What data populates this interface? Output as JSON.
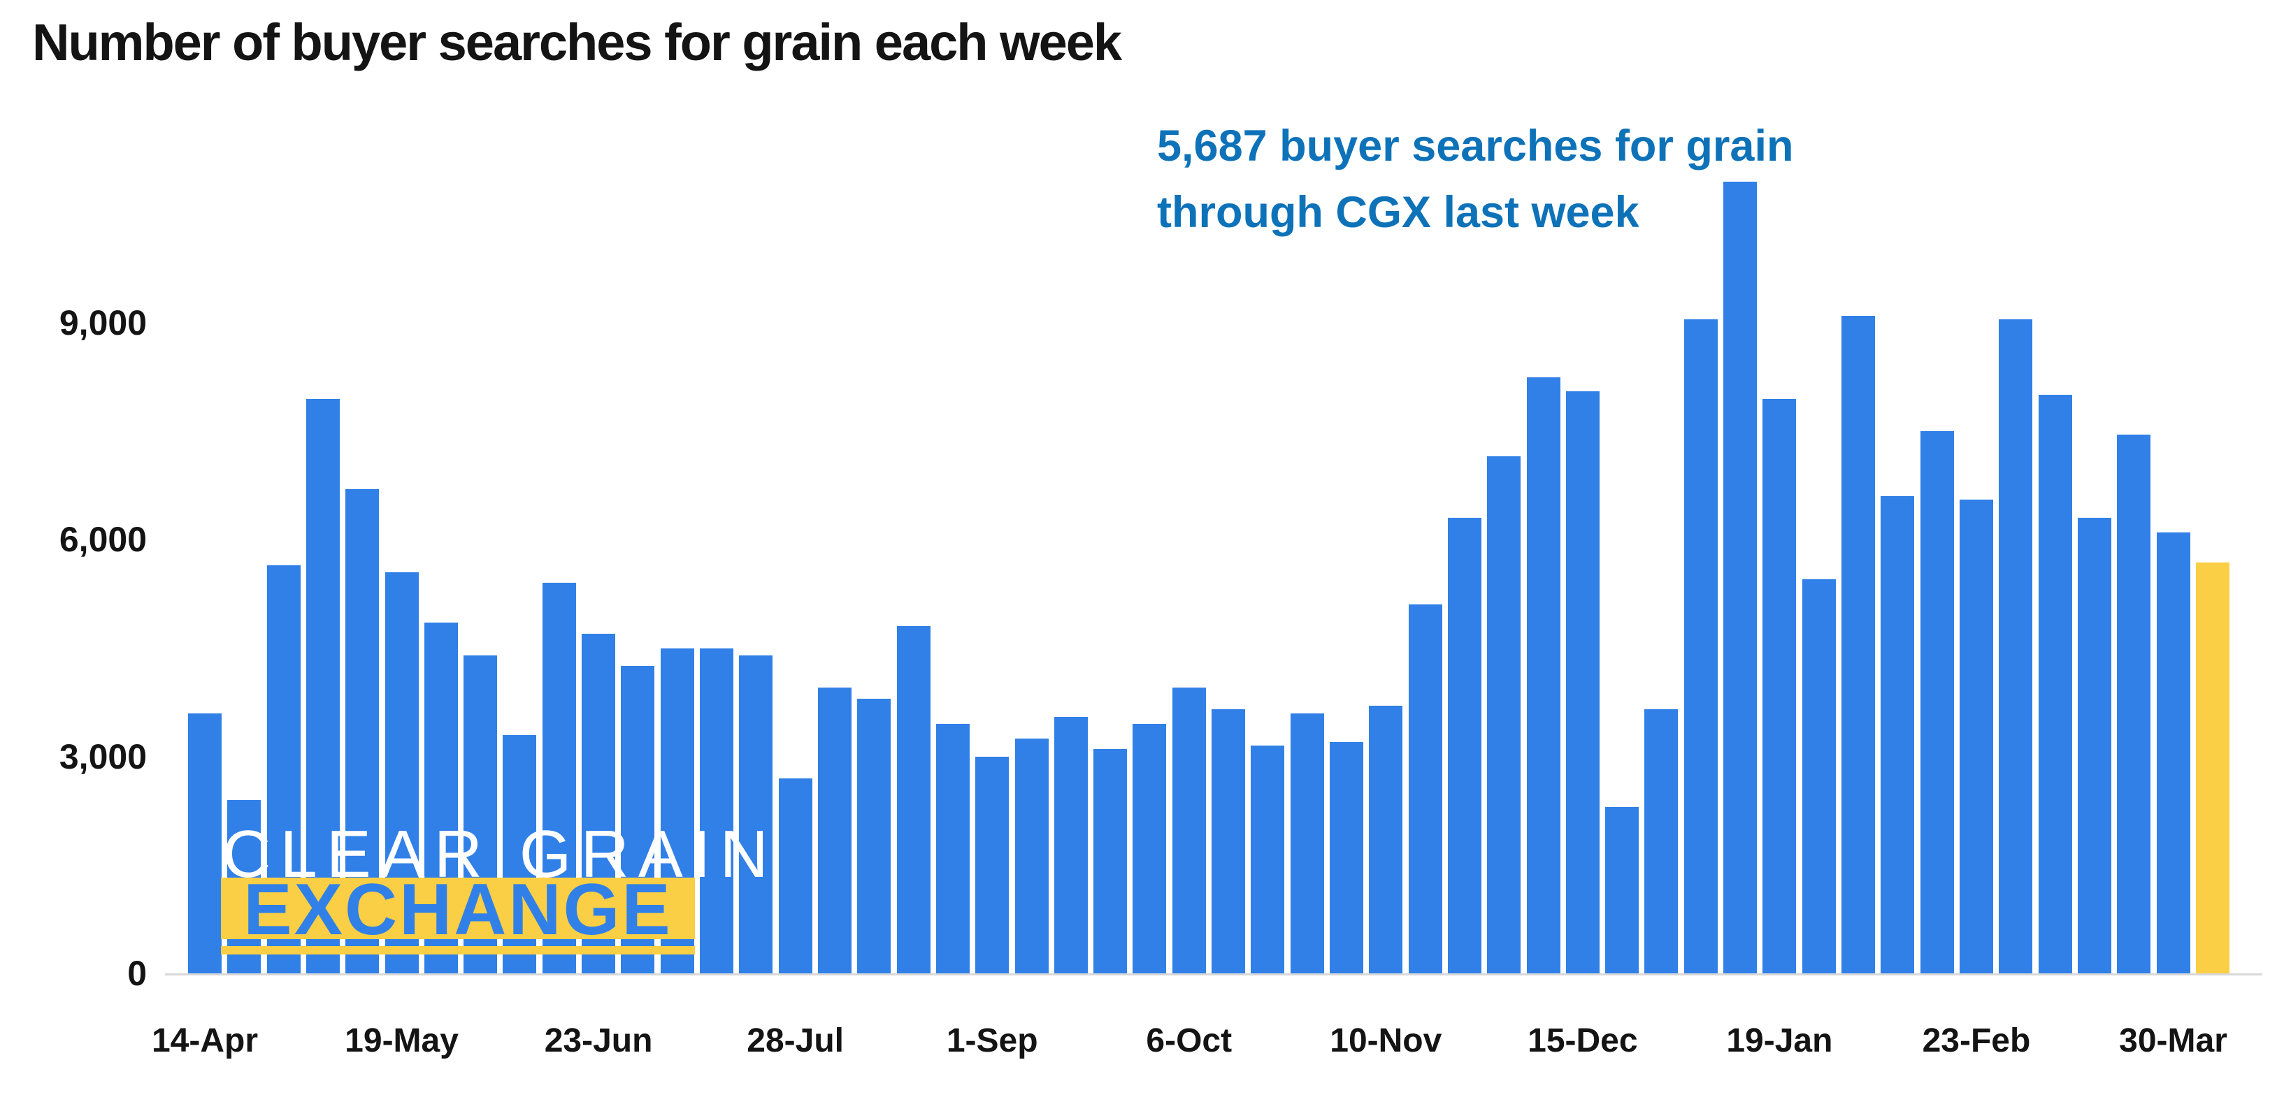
{
  "title": "Number of buyer searches for grain each week",
  "annotation": {
    "line1": "5,687 buyer searches for grain",
    "line2": "through CGX last week"
  },
  "watermark": {
    "line1": "CLEAR GRAIN",
    "line2": "EXCHANGE"
  },
  "colors": {
    "bar_blue": "#3080e8",
    "bar_yellow": "#facf45",
    "annotation_blue": "#0e72b9",
    "axis_line_gray": "#d8d8d8",
    "text_black": "#141414",
    "watermark_white": "#ffffff"
  },
  "chart_data": {
    "type": "bar",
    "title": "Number of buyer searches for grain each week",
    "xlabel": "",
    "ylabel": "",
    "ylim": [
      0,
      11000
    ],
    "grid": false,
    "legend": false,
    "y_ticks": [
      0,
      3000,
      6000,
      9000
    ],
    "y_tick_labels": [
      "0",
      "3,000",
      "6,000",
      "9,000"
    ],
    "x_tick_labels": [
      "14-Apr",
      "19-May",
      "23-Jun",
      "28-Jul",
      "1-Sep",
      "6-Oct",
      "10-Nov",
      "15-Dec",
      "19-Jan",
      "23-Feb",
      "30-Mar"
    ],
    "x_tick_indices": [
      0,
      5,
      10,
      15,
      20,
      25,
      30,
      35,
      40,
      45,
      50
    ],
    "values": [
      3600,
      2400,
      5650,
      7950,
      6700,
      5550,
      4850,
      4400,
      3300,
      5400,
      4700,
      4250,
      4500,
      4500,
      4400,
      2700,
      3950,
      3800,
      4800,
      3450,
      3000,
      3250,
      3550,
      3100,
      3450,
      3950,
      3650,
      3150,
      3600,
      3200,
      3700,
      5100,
      6300,
      7150,
      8250,
      8050,
      2300,
      3650,
      9050,
      10950,
      7950,
      5450,
      9100,
      6600,
      7500,
      6550,
      9050,
      8000,
      6300,
      7450,
      6100,
      5687
    ],
    "highlight_index": 51,
    "highlight_value": 5687,
    "series_color": "#3080e8",
    "highlight_color": "#facf45"
  }
}
